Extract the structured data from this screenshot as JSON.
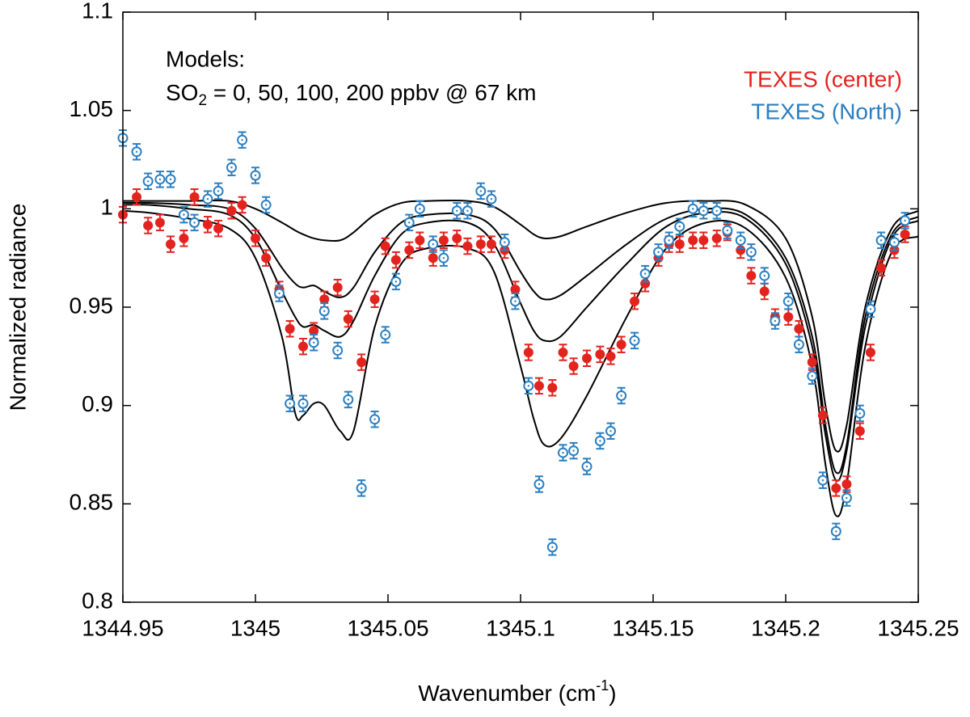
{
  "chart_data": {
    "type": "scatter",
    "xlabel": {
      "main": "Wavenumber (cm",
      "sup": "-1",
      "end": ")"
    },
    "ylabel": "Normalized radiance",
    "annotation": "Models:",
    "model_label": {
      "main": "SO",
      "sub": "2",
      "rest": " = 0, 50, 100, 200 ppbv @ 67 km"
    },
    "xlim": [
      1344.95,
      1345.25
    ],
    "xticks": [
      1344.95,
      1345,
      1345.05,
      1345.1,
      1345.15,
      1345.2,
      1345.25
    ],
    "ylim": [
      0.8,
      1.1
    ],
    "yticks": [
      0.8,
      0.85,
      0.9,
      0.95,
      1,
      1.05,
      1.1
    ],
    "legend": "upper right",
    "x": [
      1344.95,
      1344.9552,
      1344.9595,
      1344.964,
      1344.968,
      1344.973,
      1344.977,
      1344.982,
      1344.986,
      1344.991,
      1344.995,
      1345.0,
      1345.004,
      1345.009,
      1345.013,
      1345.018,
      1345.022,
      1345.026,
      1345.031,
      1345.035,
      1345.04,
      1345.045,
      1345.049,
      1345.053,
      1345.058,
      1345.062,
      1345.067,
      1345.071,
      1345.076,
      1345.08,
      1345.085,
      1345.089,
      1345.094,
      1345.098,
      1345.103,
      1345.107,
      1345.112,
      1345.116,
      1345.12,
      1345.125,
      1345.13,
      1345.134,
      1345.138,
      1345.143,
      1345.147,
      1345.152,
      1345.156,
      1345.16,
      1345.165,
      1345.169,
      1345.174,
      1345.178,
      1345.183,
      1345.187,
      1345.192,
      1345.196,
      1345.201,
      1345.205,
      1345.21,
      1345.214,
      1345.219,
      1345.223,
      1345.228,
      1345.232,
      1345.236,
      1345.241,
      1345.245
    ],
    "series": [
      {
        "name": "TEXES (center)",
        "color": "#e3231e",
        "marker": "filled",
        "error": 0.004,
        "values": [
          0.997,
          1.006,
          0.9915,
          0.993,
          0.982,
          0.985,
          1.006,
          0.992,
          0.99,
          0.999,
          1.002,
          0.985,
          0.975,
          0.959,
          0.939,
          0.93,
          0.938,
          0.954,
          0.96,
          0.944,
          0.922,
          0.954,
          0.981,
          0.974,
          0.979,
          0.984,
          0.975,
          0.984,
          0.985,
          0.981,
          0.982,
          0.982,
          0.979,
          0.959,
          0.927,
          0.91,
          0.909,
          0.927,
          0.92,
          0.924,
          0.926,
          0.925,
          0.931,
          0.953,
          0.962,
          0.975,
          0.982,
          0.982,
          0.984,
          0.984,
          0.985,
          0.988,
          0.979,
          0.966,
          0.958,
          0.945,
          0.945,
          0.939,
          0.922,
          0.895,
          0.858,
          0.86,
          0.887,
          0.927,
          0.97,
          0.979,
          0.987
        ]
      },
      {
        "name": "TEXES (North)",
        "color": "#2a7fc1",
        "marker": "open",
        "error": 0.004,
        "values": [
          1.036,
          1.029,
          1.014,
          1.015,
          1.015,
          0.997,
          0.993,
          1.005,
          1.009,
          1.021,
          1.035,
          1.017,
          1.002,
          0.957,
          0.901,
          0.901,
          0.932,
          0.948,
          0.928,
          0.903,
          0.858,
          0.893,
          0.936,
          0.963,
          0.993,
          1.0,
          0.982,
          0.975,
          0.999,
          0.999,
          1.009,
          1.005,
          0.983,
          0.953,
          0.91,
          0.86,
          0.828,
          0.876,
          0.877,
          0.869,
          0.882,
          0.887,
          0.905,
          0.933,
          0.967,
          0.978,
          0.984,
          0.991,
          1.0,
          0.999,
          0.999,
          0.989,
          0.984,
          0.978,
          0.966,
          0.943,
          0.953,
          0.931,
          0.915,
          0.862,
          0.836,
          0.853,
          0.896,
          0.949,
          0.984,
          0.983,
          0.994
        ]
      }
    ],
    "model_color": "#000000",
    "model_x": [
      1344.95,
      1344.96,
      1344.975,
      1344.99,
      1345.0,
      1345.01,
      1345.015,
      1345.018,
      1345.022,
      1345.026,
      1345.032,
      1345.037,
      1345.045,
      1345.055,
      1345.065,
      1345.08,
      1345.09,
      1345.1,
      1345.105,
      1345.109,
      1345.115,
      1345.125,
      1345.14,
      1345.155,
      1345.17,
      1345.185,
      1345.2,
      1345.21,
      1345.215,
      1345.219,
      1345.223,
      1345.23,
      1345.24,
      1345.25
    ],
    "models": [
      {
        "values": [
          1.004,
          1.004,
          1.004,
          1.004,
          1.0,
          0.993,
          0.989,
          0.987,
          0.985,
          0.984,
          0.984,
          0.988,
          0.997,
          1.003,
          1.004,
          1.004,
          1.001,
          0.992,
          0.987,
          0.985,
          0.986,
          0.991,
          0.998,
          1.003,
          1.004,
          1.002,
          0.985,
          0.945,
          0.9,
          0.877,
          0.89,
          0.95,
          0.99,
          0.999
        ]
      },
      {
        "values": [
          1.003,
          1.003,
          1.002,
          1.0,
          0.99,
          0.97,
          0.962,
          0.96,
          0.961,
          0.958,
          0.955,
          0.96,
          0.978,
          0.993,
          0.997,
          0.997,
          0.99,
          0.968,
          0.958,
          0.954,
          0.956,
          0.966,
          0.982,
          0.995,
          1.0,
          0.997,
          0.975,
          0.935,
          0.89,
          0.866,
          0.88,
          0.945,
          0.987,
          0.996
        ]
      },
      {
        "values": [
          1.002,
          1.002,
          1.0,
          0.997,
          0.985,
          0.958,
          0.945,
          0.94,
          0.941,
          0.938,
          0.935,
          0.943,
          0.966,
          0.987,
          0.993,
          0.993,
          0.982,
          0.952,
          0.938,
          0.933,
          0.935,
          0.95,
          0.972,
          0.991,
          0.998,
          0.995,
          0.972,
          0.93,
          0.885,
          0.862,
          0.877,
          0.94,
          0.985,
          0.994
        ]
      },
      {
        "values": [
          0.999,
          0.998,
          0.995,
          0.99,
          0.975,
          0.935,
          0.896,
          0.895,
          0.901,
          0.9,
          0.887,
          0.887,
          0.94,
          0.972,
          0.98,
          0.98,
          0.968,
          0.92,
          0.893,
          0.88,
          0.883,
          0.905,
          0.945,
          0.98,
          0.993,
          0.99,
          0.965,
          0.92,
          0.87,
          0.844,
          0.86,
          0.93,
          0.978,
          0.986
        ]
      }
    ]
  }
}
